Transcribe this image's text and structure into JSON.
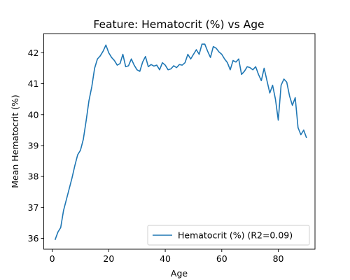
{
  "chart_data": {
    "type": "line",
    "title": "Feature: Hematocrit (%) vs Age",
    "xlabel": "Age",
    "ylabel": "Mean Hematocrit (%)",
    "xlim": [
      -3,
      93
    ],
    "ylim": [
      35.65,
      42.62
    ],
    "xticks": [
      0,
      20,
      40,
      60,
      80
    ],
    "yticks": [
      36,
      37,
      38,
      39,
      40,
      41,
      42
    ],
    "grid": false,
    "legend_position": "bottom-right",
    "color": "#1f77b4",
    "series": [
      {
        "name": "Hematocrit (%) (R2=0.09)",
        "x": [
          1,
          2,
          3,
          4,
          5,
          6,
          7,
          8,
          9,
          10,
          11,
          12,
          13,
          14,
          15,
          16,
          17,
          18,
          19,
          20,
          21,
          22,
          23,
          24,
          25,
          26,
          27,
          28,
          29,
          30,
          31,
          32,
          33,
          34,
          35,
          36,
          37,
          38,
          39,
          40,
          41,
          42,
          43,
          44,
          45,
          46,
          47,
          48,
          49,
          50,
          51,
          52,
          53,
          54,
          55,
          56,
          57,
          58,
          59,
          60,
          61,
          62,
          63,
          64,
          65,
          66,
          67,
          68,
          69,
          70,
          71,
          72,
          73,
          74,
          75,
          76,
          77,
          78,
          79,
          80,
          81,
          82,
          83,
          84,
          85,
          86,
          87,
          88,
          89,
          90
        ],
        "values": [
          35.95,
          36.2,
          36.35,
          36.9,
          37.25,
          37.6,
          37.95,
          38.35,
          38.7,
          38.85,
          39.2,
          39.8,
          40.45,
          40.9,
          41.5,
          41.8,
          41.9,
          42.05,
          42.25,
          42,
          41.85,
          41.75,
          41.6,
          41.65,
          41.95,
          41.55,
          41.58,
          41.8,
          41.6,
          41.45,
          41.4,
          41.7,
          41.88,
          41.55,
          41.62,
          41.57,
          41.6,
          41.45,
          41.68,
          41.6,
          41.45,
          41.48,
          41.58,
          41.52,
          41.62,
          41.6,
          41.68,
          41.95,
          41.8,
          41.95,
          42.1,
          41.95,
          42.28,
          42.28,
          42.05,
          41.85,
          42.2,
          42.15,
          42.03,
          41.95,
          41.8,
          41.68,
          41.45,
          41.75,
          41.7,
          41.8,
          41.3,
          41.4,
          41.55,
          41.52,
          41.45,
          41.55,
          41.3,
          41.1,
          41.5,
          41.1,
          40.7,
          40.95,
          40.5,
          39.82,
          40.95,
          41.15,
          41.05,
          40.6,
          40.3,
          40.55,
          39.58,
          39.35,
          39.5,
          39.25
        ]
      }
    ]
  }
}
